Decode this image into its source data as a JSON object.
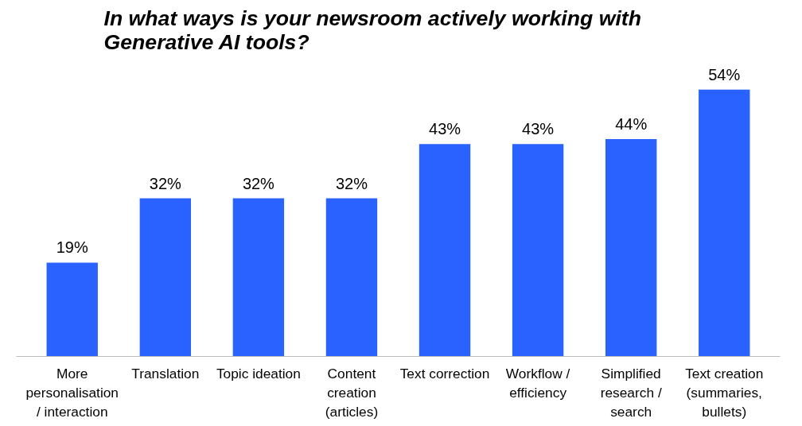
{
  "chart_data": {
    "type": "bar",
    "title": "In what ways is your newsroom actively working with\nGenerative AI tools?",
    "categories": [
      "More\npersonalisation\n/ interaction",
      "Translation",
      "Topic ideation",
      "Content\ncreation\n(articles)",
      "Text correction",
      "Workflow /\nefficiency",
      "Simplified\nresearch /\nsearch",
      "Text creation\n(summaries,\nbullets)"
    ],
    "values": [
      19,
      32,
      32,
      32,
      43,
      43,
      44,
      54
    ],
    "color": "#2962ff",
    "data_labels": true,
    "value_labels": [
      "19%",
      "32%",
      "32%",
      "32%",
      "43%",
      "43%",
      "44%",
      "54%"
    ],
    "grid": false,
    "tick_labels": "x"
  }
}
